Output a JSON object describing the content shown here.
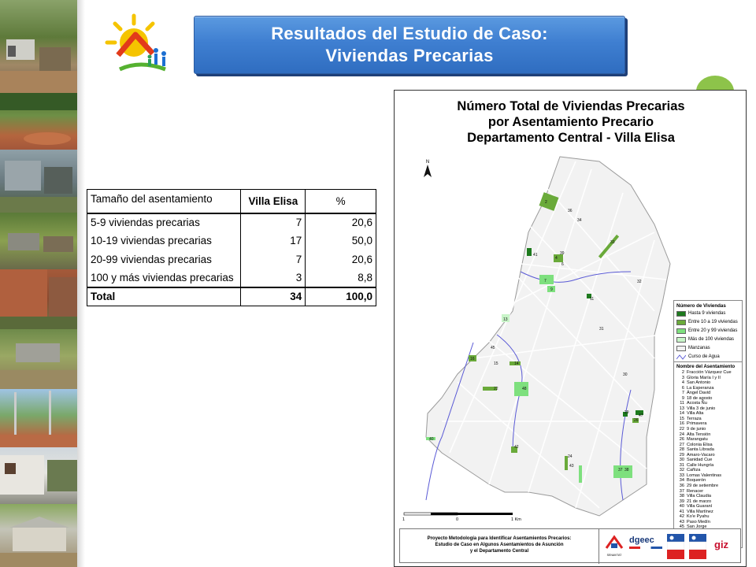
{
  "title": {
    "line1": "Resultados del Estudio de Caso:",
    "line2": "Viviendas Precarias"
  },
  "table": {
    "headers": [
      "Tamaño del asentamiento",
      "Villa Elisa",
      "%"
    ],
    "rows": [
      [
        "5-9 viviendas precarias",
        "7",
        "20,6"
      ],
      [
        "10-19 viviendas precarias",
        "17",
        "50,0"
      ],
      [
        "20-99 viviendas precarias",
        "7",
        "20,6"
      ],
      [
        "100 y más viviendas precarias",
        "3",
        "8,8"
      ]
    ],
    "total": [
      "Total",
      "34",
      "100,0"
    ]
  },
  "map": {
    "title_lines": [
      "Número Total de Viviendas Precarias",
      "por Asentamiento Precario",
      "Departamento Central  - Villa Elisa"
    ],
    "north_label": "N",
    "legend_title": "Número de Viviendas",
    "legend": [
      {
        "label": "Hasta 9 viviendas",
        "color": "#1e7a1e"
      },
      {
        "label": "Entre 10 a 19 viviendas",
        "color": "#6aaa3a"
      },
      {
        "label": "Entre 20 y 99 viviendas",
        "color": "#7ee07e"
      },
      {
        "label": "Más de 100 viviendas",
        "color": "#c9f5c9"
      },
      {
        "label": "Manzanas",
        "color": "#f2f2f2"
      },
      {
        "label": "Curso de Agua",
        "color": "#5b5bd6"
      }
    ],
    "names_title": "Nombre del Asentamiento",
    "names": [
      [
        "2",
        "Fracción Vázquez Cue"
      ],
      [
        "3",
        "Gloria María I y II"
      ],
      [
        "4",
        "San Antonio"
      ],
      [
        "6",
        "La Esperanza"
      ],
      [
        "7",
        "Ángel David"
      ],
      [
        "9",
        "18 de agosto"
      ],
      [
        "11",
        "Acosta Ñu"
      ],
      [
        "13",
        "Villa 3 de junio"
      ],
      [
        "14",
        "Villa Alta"
      ],
      [
        "15",
        "Terraza"
      ],
      [
        "16",
        "Primavera"
      ],
      [
        "22",
        "9 de junio"
      ],
      [
        "24",
        "Alta Tensión"
      ],
      [
        "26",
        "Marangatu"
      ],
      [
        "27",
        "Colonia Elisa"
      ],
      [
        "28",
        "Santa Librada"
      ],
      [
        "29",
        "Amaro-Vacaro"
      ],
      [
        "30",
        "Sanidad Cue"
      ],
      [
        "31",
        "Calle Hungría"
      ],
      [
        "32",
        "Cañiza"
      ],
      [
        "33",
        "Lomas Valentinas"
      ],
      [
        "34",
        "Boquerón"
      ],
      [
        "36",
        "29 de setiembre"
      ],
      [
        "37",
        "Renacer"
      ],
      [
        "38",
        "Villa Claudia"
      ],
      [
        "39",
        "21 de marzo"
      ],
      [
        "40",
        "Villa Guaraní"
      ],
      [
        "41",
        "Villa Martínez"
      ],
      [
        "42",
        "Ko'e Pyahu"
      ],
      [
        "43",
        "Paso Medín"
      ],
      [
        "45",
        "San Jorge"
      ],
      [
        "46",
        "Gloria María III"
      ],
      [
        "47",
        "San Rafael"
      ],
      [
        "48",
        "Villa Esperanza"
      ]
    ],
    "scale_labels": [
      "1",
      "0",
      "1 Km"
    ],
    "footer_lines": [
      "Proyecto Metodología para Identificar Asentamientos Precarios:",
      "Estudio de Caso en Algunos Asentamientos de Asunción",
      "y el Departamento Central"
    ],
    "footer_logos": [
      "SENAVITAT",
      "dgeec",
      "giz"
    ],
    "settlement_labels": [
      {
        "n": "2"
      },
      {
        "n": "36"
      },
      {
        "n": "34"
      },
      {
        "n": "33"
      },
      {
        "n": "41"
      },
      {
        "n": "39"
      },
      {
        "n": "4"
      },
      {
        "n": "6"
      },
      {
        "n": "7"
      },
      {
        "n": "9"
      },
      {
        "n": "32"
      },
      {
        "n": "11"
      },
      {
        "n": "13"
      },
      {
        "n": "31"
      },
      {
        "n": "45"
      },
      {
        "n": "16"
      },
      {
        "n": "15"
      },
      {
        "n": "14"
      },
      {
        "n": "30"
      },
      {
        "n": "22"
      },
      {
        "n": "48"
      },
      {
        "n": "29"
      },
      {
        "n": "47"
      },
      {
        "n": "26"
      },
      {
        "n": "40"
      },
      {
        "n": "42"
      },
      {
        "n": "24"
      },
      {
        "n": "43"
      },
      {
        "n": "37"
      },
      {
        "n": "38"
      }
    ]
  }
}
